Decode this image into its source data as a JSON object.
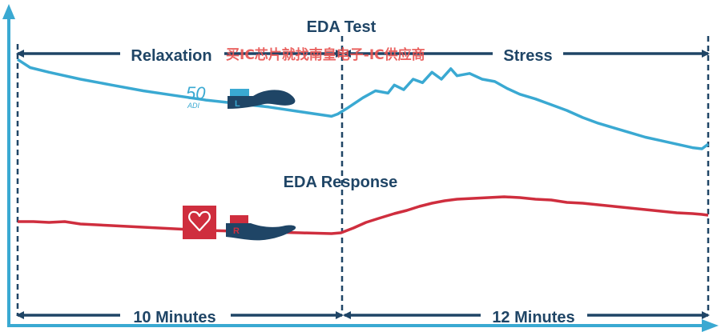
{
  "chart_data": {
    "type": "line",
    "title": "EDA Test",
    "subtitle": "EDA Response",
    "xlabel": "",
    "ylabel": "",
    "grid": false,
    "legend": "none",
    "phases": [
      {
        "name": "Relaxation",
        "duration_label": "10 Minutes",
        "minutes": 10
      },
      {
        "name": "Stress",
        "duration_label": "12 Minutes",
        "minutes": 12
      }
    ],
    "x_unit": "minutes",
    "xlim": [
      0,
      22
    ],
    "ylim": [
      0,
      100
    ],
    "series": [
      {
        "color": "#3aa9d2",
        "x": [
          0,
          0.4,
          1,
          2,
          3,
          4,
          5,
          6,
          7,
          8,
          9,
          10,
          10.2,
          10.5,
          11,
          11.4,
          11.8,
          12,
          12.3,
          12.6,
          12.9,
          13.2,
          13.5,
          13.8,
          14,
          14.4,
          14.8,
          15.2,
          15.6,
          16,
          16.5,
          17,
          17.5,
          18,
          18.5,
          19,
          19.5,
          20,
          20.5,
          21,
          21.5,
          21.8,
          22
        ],
        "y": [
          97,
          90,
          86,
          80,
          75,
          70,
          66,
          62,
          59,
          56,
          52,
          48,
          50,
          55,
          64,
          70,
          68,
          75,
          71,
          80,
          77,
          86,
          80,
          89,
          83,
          85,
          80,
          78,
          72,
          67,
          63,
          58,
          53,
          47,
          42,
          38,
          34,
          30,
          27,
          24,
          21,
          20,
          24
        ]
      },
      {
        "color": "#cf2e3e",
        "x": [
          0,
          0.5,
          1,
          1.5,
          2,
          3,
          4,
          5,
          6,
          7,
          8,
          9,
          10,
          10.3,
          10.7,
          11.1,
          11.5,
          12,
          12.4,
          12.8,
          13.2,
          13.6,
          14,
          14.5,
          15,
          15.5,
          16,
          16.5,
          17,
          17.5,
          18,
          18.5,
          19,
          19.5,
          20,
          20.5,
          21,
          21.5,
          21.8,
          22
        ],
        "y": [
          45,
          45,
          44,
          45,
          42,
          40,
          38,
          36,
          34,
          33,
          32,
          31,
          30,
          31,
          37,
          44,
          49,
          55,
          59,
          64,
          68,
          71,
          73,
          74,
          75,
          76,
          75,
          73,
          72,
          69,
          68,
          66,
          64,
          62,
          60,
          58,
          56,
          55,
          54,
          53
        ]
      }
    ],
    "icons": [
      "adi-logo-icon",
      "hand-with-left-sensor-icon",
      "heart-icon",
      "hand-with-right-sensor-icon"
    ]
  },
  "title": "EDA Test",
  "response_label": "EDA Response",
  "phases": {
    "relaxation": "Relaxation",
    "stress": "Stress",
    "relax_duration": "10 Minutes",
    "stress_duration": "12 Minutes"
  },
  "logo_text": {
    "number": "50",
    "brand": "ADI"
  },
  "sensor_labels": {
    "left": "L",
    "right": "R"
  },
  "watermark": "买IC芯片就找南皇电子-IC供应商",
  "colors": {
    "axis": "#3aa9d2",
    "blue_line": "#3aa9d2",
    "red_line": "#cf2e3e",
    "arrow": "#1f4566",
    "text": "#1f4566",
    "hand": "#1f4566",
    "watermark": "#e8524f"
  }
}
